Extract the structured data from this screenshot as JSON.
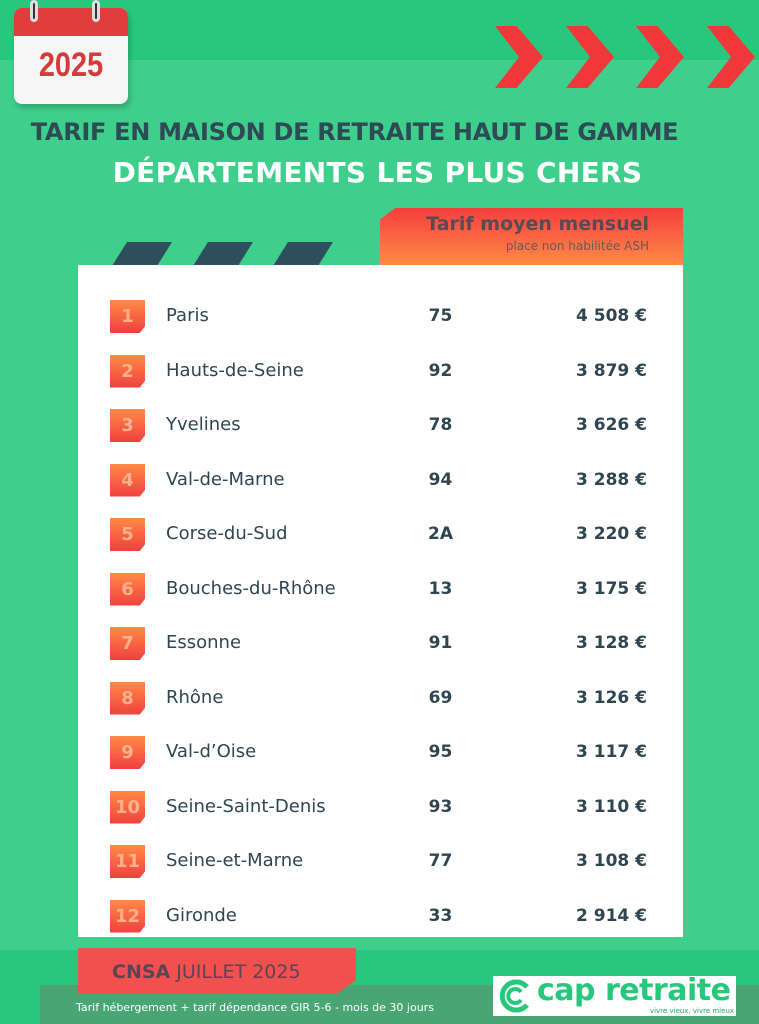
{
  "calendar_year": "2025",
  "title_line1": "TARIF EN MAISON DE RETRAITE HAUT DE GAMME",
  "title_line2": "DÉPARTEMENTS LES PLUS CHERS",
  "column_header": {
    "title": "Tarif moyen mensuel",
    "subtitle": "place non habilitée ASH"
  },
  "rows": [
    {
      "rank": "1",
      "name": "Paris",
      "code": "75",
      "price": "4 508 €"
    },
    {
      "rank": "2",
      "name": "Hauts-de-Seine",
      "code": "92",
      "price": "3 879 €"
    },
    {
      "rank": "3",
      "name": "Yvelines",
      "code": "78",
      "price": "3 626 €"
    },
    {
      "rank": "4",
      "name": "Val-de-Marne",
      "code": "94",
      "price": "3 288 €"
    },
    {
      "rank": "5",
      "name": "Corse-du-Sud",
      "code": "2A",
      "price": "3 220 €"
    },
    {
      "rank": "6",
      "name": "Bouches-du-Rhône",
      "code": "13",
      "price": "3 175 €"
    },
    {
      "rank": "7",
      "name": "Essonne",
      "code": "91",
      "price": "3 128 €"
    },
    {
      "rank": "8",
      "name": "Rhône",
      "code": "69",
      "price": "3 126 €"
    },
    {
      "rank": "9",
      "name": "Val-d’Oise",
      "code": "95",
      "price": "3 117 €"
    },
    {
      "rank": "10",
      "name": "Seine-Saint-Denis",
      "code": "93",
      "price": "3 110 €"
    },
    {
      "rank": "11",
      "name": "Seine-et-Marne",
      "code": "77",
      "price": "3 108 €"
    },
    {
      "rank": "12",
      "name": "Gironde",
      "code": "33",
      "price": "2 914 €"
    }
  ],
  "source": {
    "bold": "CNSA",
    "rest": " JUILLET 2025"
  },
  "footnote": "Tarif hébergement + tarif dépendance GIR 5-6 - mois de 30 jours",
  "logo": {
    "text": "cap retraite",
    "slogan": "vivre vieux, vivre mieux"
  },
  "colors": {
    "green": "#27c87b",
    "accent": "#f0383a",
    "text": "#2f4550"
  }
}
